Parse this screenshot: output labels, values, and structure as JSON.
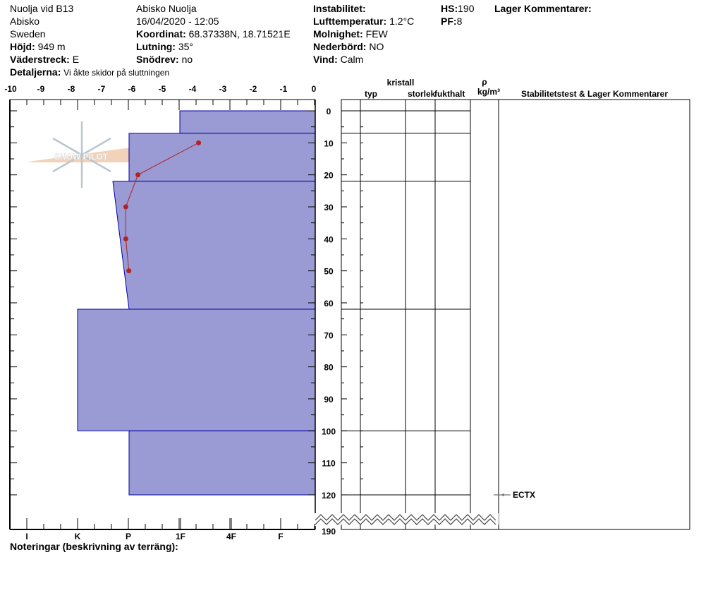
{
  "header": {
    "site": "Nuolja vid B13",
    "region": "Abisko",
    "country": "Sweden",
    "elevation_label": "Höjd:",
    "elevation": "949 m",
    "aspect_label": "Väderstreck:",
    "aspect": "E",
    "details_label": "Detaljerna:",
    "details": "Vi åkte skidor på sluttningen",
    "location": "Abisko Nuolja",
    "datetime": "16/04/2020 - 12:05",
    "coord_label": "Koordinat:",
    "coord": "68.37338N, 18.71521E",
    "slope_label": "Lutning:",
    "slope": "35°",
    "drift_label": "Snödrev:",
    "drift": "no",
    "instability_label": "Instabilitet:",
    "instability": "",
    "airtemp_label": "Lufttemperatur:",
    "airtemp": "1.2°C",
    "sky_label": "Molnighet:",
    "sky": "FEW",
    "precip_label": "Nederbörd:",
    "precip": "NO",
    "wind_label": "Vind:",
    "wind": "Calm",
    "hs_label": "HS:",
    "hs": "190",
    "pf_label": "PF:",
    "pf": "8",
    "layer_comments_label": "Lager Kommentarer:"
  },
  "logo": {
    "text": "SNOW PILOT"
  },
  "table_headers": {
    "crystal": "kristall",
    "type": "typ",
    "size": "storlek",
    "moisture": "fukthalt",
    "rho": "ρ",
    "density": "kg/m³",
    "stability": "Stabilitetstest & Lager Kommentarer"
  },
  "notes_label": "Noteringar (beskrivning av terräng):",
  "chart_data": {
    "type": "snow-profile",
    "temperature_axis": {
      "range": [
        -10,
        0
      ],
      "ticks": [
        "-10",
        "-9",
        "-8",
        "-7",
        "-6",
        "-5",
        "-4",
        "-3",
        "-2",
        "-1",
        "0"
      ]
    },
    "depth_axis": {
      "range": [
        0,
        120
      ],
      "break_to": 190,
      "ticks": [
        "0",
        "10",
        "20",
        "30",
        "40",
        "50",
        "60",
        "70",
        "80",
        "90",
        "100",
        "110",
        "120"
      ],
      "break_label": "190"
    },
    "hardness_axis": {
      "ticks": [
        "I",
        "K",
        "P",
        "1F",
        "4F",
        "F"
      ]
    },
    "layers": [
      {
        "top": 0,
        "bottom": 7,
        "hardness_top": "1F",
        "hardness_bottom": "1F"
      },
      {
        "top": 7,
        "bottom": 22,
        "hardness_top": "P",
        "hardness_bottom": "P"
      },
      {
        "top": 22,
        "bottom": 62,
        "hardness_top": "K-P",
        "hardness_bottom": "P"
      },
      {
        "top": 62,
        "bottom": 100,
        "hardness_top": "K",
        "hardness_bottom": "K"
      },
      {
        "top": 100,
        "bottom": 120,
        "hardness_top": "P",
        "hardness_bottom": "P"
      }
    ],
    "temperature_profile": {
      "depth": [
        10,
        20,
        30,
        40,
        50
      ],
      "temp": [
        -3.8,
        -5.8,
        -6.2,
        -6.2,
        -6.1
      ]
    },
    "stability_tests": [
      {
        "depth": 120,
        "label": "ECTX"
      }
    ],
    "colors": {
      "layer_fill": "#9a9ad4",
      "layer_stroke": "#0000aa",
      "temp_line": "#b22222"
    }
  }
}
